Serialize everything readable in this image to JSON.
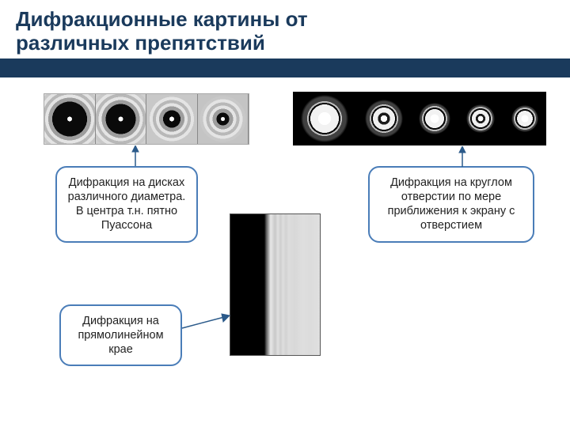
{
  "title_line1": "Дифракционные картины от",
  "title_line2": "различных препятствий",
  "callouts": {
    "disks": "Дифракция на дисках различного диаметра.\nВ центра т.н. пятно Пуассона",
    "edge": "Дифракция на прямолинейном крае",
    "aperture": "Дифракция на круглом отверстии по мере приближения к экрану с отверстием"
  },
  "disk_strip": {
    "cells": [
      {
        "bg": "#d8d8d8",
        "core": 22,
        "spot": 3
      },
      {
        "bg": "#d0d0d0",
        "core": 19,
        "spot": 3
      },
      {
        "bg": "#c8c8c8",
        "core": 11,
        "spot": 3
      },
      {
        "bg": "#c4c4c4",
        "core": 8,
        "spot": 2.5
      }
    ]
  },
  "aperture_strip": {
    "cells": [
      {
        "halo": 30,
        "disk": 18,
        "center": "bright",
        "rings": 2
      },
      {
        "halo": 24,
        "disk": 14,
        "center": "dark",
        "rings": 1
      },
      {
        "halo": 20,
        "disk": 12,
        "center": "bright",
        "rings": 3
      },
      {
        "halo": 18,
        "disk": 11,
        "center": "dark",
        "rings": 2
      },
      {
        "halo": 17,
        "disk": 10,
        "center": "bright",
        "rings": 2
      }
    ]
  },
  "colors": {
    "title": "#1a3a5c",
    "bar": "#1a3a5c",
    "callout_border": "#4a7db8",
    "arrow": "#2b5a8a"
  }
}
